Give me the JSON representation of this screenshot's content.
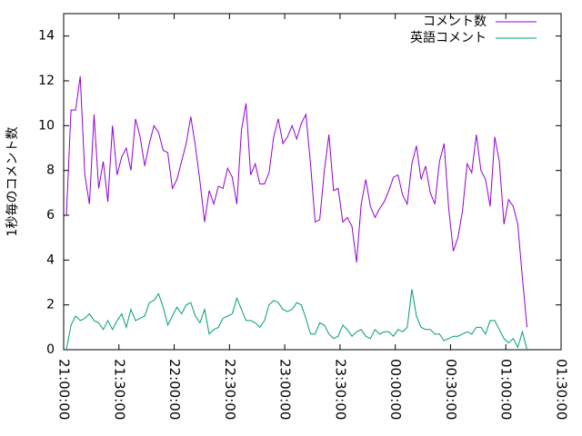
{
  "chart_data": {
    "type": "line",
    "ylabel": "1秒毎のコメント数",
    "x": [
      "21:01:30",
      "21:04:00",
      "21:06:30",
      "21:09:00",
      "21:11:30",
      "21:14:00",
      "21:16:30",
      "21:19:00",
      "21:21:30",
      "21:24:00",
      "21:26:30",
      "21:29:00",
      "21:31:30",
      "21:34:00",
      "21:36:30",
      "21:39:00",
      "21:41:30",
      "21:44:00",
      "21:46:30",
      "21:49:00",
      "21:51:30",
      "21:54:00",
      "21:56:30",
      "21:59:00",
      "22:01:30",
      "22:04:00",
      "22:06:30",
      "22:09:00",
      "22:11:30",
      "22:14:00",
      "22:16:30",
      "22:19:00",
      "22:21:30",
      "22:24:00",
      "22:26:30",
      "22:29:00",
      "22:31:30",
      "22:34:00",
      "22:36:30",
      "22:39:00",
      "22:41:30",
      "22:44:00",
      "22:46:30",
      "22:49:00",
      "22:51:30",
      "22:54:00",
      "22:56:30",
      "22:59:00",
      "23:01:30",
      "23:04:00",
      "23:06:30",
      "23:09:00",
      "23:11:30",
      "23:14:00",
      "23:16:30",
      "23:19:00",
      "23:21:30",
      "23:24:00",
      "23:26:30",
      "23:29:00",
      "23:31:30",
      "23:34:00",
      "23:36:30",
      "23:39:00",
      "23:41:30",
      "23:44:00",
      "23:46:30",
      "23:49:00",
      "23:51:30",
      "23:54:00",
      "23:56:30",
      "23:59:00",
      "00:01:30",
      "00:04:00",
      "00:06:30",
      "00:09:00",
      "00:11:30",
      "00:14:00",
      "00:16:30",
      "00:19:00",
      "00:21:30",
      "00:24:00",
      "00:26:30",
      "00:29:00",
      "00:31:30",
      "00:34:00",
      "00:36:30",
      "00:39:00",
      "00:41:30",
      "00:44:00",
      "00:46:30",
      "00:49:00",
      "00:51:30",
      "00:54:00",
      "00:56:30",
      "00:59:00",
      "01:01:30",
      "01:04:00",
      "01:06:30",
      "01:09:00",
      "01:11:30"
    ],
    "series": [
      {
        "name": "コメント数",
        "color": "#9400d3",
        "values": [
          6,
          10.7,
          10.7,
          12.2,
          7.8,
          6.5,
          10.5,
          7.2,
          8.4,
          6.6,
          10,
          7.8,
          8.6,
          9,
          8,
          10.3,
          9.5,
          8.2,
          9.2,
          10,
          9.7,
          8.9,
          8.8,
          7.2,
          7.6,
          8.4,
          9.2,
          10.4,
          9.1,
          7.5,
          5.7,
          7.1,
          6.5,
          7.3,
          7.2,
          8.1,
          7.7,
          6.5,
          9.8,
          11,
          7.8,
          8.3,
          7.4,
          7.4,
          7.9,
          9.5,
          10.3,
          9.2,
          9.5,
          10,
          9.4,
          10.1,
          10.5,
          8.3,
          5.7,
          5.8,
          8,
          9.6,
          7.1,
          7.2,
          5.7,
          5.9,
          5.5,
          3.9,
          6.5,
          7.6,
          6.4,
          5.9,
          6.3,
          6.6,
          7.1,
          7.7,
          7.8,
          6.9,
          6.5,
          8.3,
          9.1,
          7.6,
          8.2,
          7,
          6.5,
          8.4,
          9.2,
          6.3,
          4.4,
          5,
          6.2,
          8.3,
          7.9,
          9.6,
          8,
          7.6,
          6.4,
          9.5,
          8.4,
          5.6,
          6.7,
          6.4,
          5.6,
          3.2,
          1
        ]
      },
      {
        "name": "英語コメント",
        "color": "#009e73",
        "values": [
          0,
          1.1,
          1.5,
          1.3,
          1.4,
          1.6,
          1.3,
          1.2,
          0.9,
          1.3,
          0.9,
          1.3,
          1.6,
          1.0,
          1.8,
          1.3,
          1.4,
          1.5,
          2.1,
          2.2,
          2.5,
          1.9,
          1.1,
          1.5,
          1.9,
          1.6,
          2.0,
          2.1,
          1.5,
          1.2,
          1.8,
          0.7,
          0.9,
          1.0,
          1.4,
          1.5,
          1.6,
          2.3,
          1.8,
          1.3,
          1.3,
          1.2,
          1.0,
          1.3,
          2.0,
          2.2,
          2.1,
          1.8,
          1.7,
          1.8,
          2.1,
          2.0,
          1.4,
          0.7,
          0.7,
          1.2,
          1.1,
          0.7,
          0.5,
          0.6,
          1.1,
          0.9,
          0.6,
          0.8,
          0.9,
          0.6,
          0.5,
          0.9,
          0.7,
          0.8,
          0.8,
          0.6,
          0.9,
          0.8,
          1.0,
          2.7,
          1.5,
          1.0,
          0.9,
          0.9,
          0.7,
          0.7,
          0.4,
          0.5,
          0.6,
          0.6,
          0.7,
          0.8,
          0.7,
          1.0,
          1.0,
          0.7,
          1.3,
          1.3,
          0.9,
          0.5,
          0.3,
          0.5,
          0.1,
          0.8,
          0
        ]
      }
    ],
    "xlim": [
      "21:00:00",
      "01:30:00"
    ],
    "xticks": [
      "21:00:00",
      "21:30:00",
      "22:00:00",
      "22:30:00",
      "23:00:00",
      "23:30:00",
      "00:00:00",
      "00:30:00",
      "01:00:00",
      "01:30:00"
    ],
    "ylim": [
      0,
      15
    ],
    "yticks": [
      0,
      2,
      4,
      6,
      8,
      10,
      12,
      14
    ],
    "legend": "upper right"
  }
}
